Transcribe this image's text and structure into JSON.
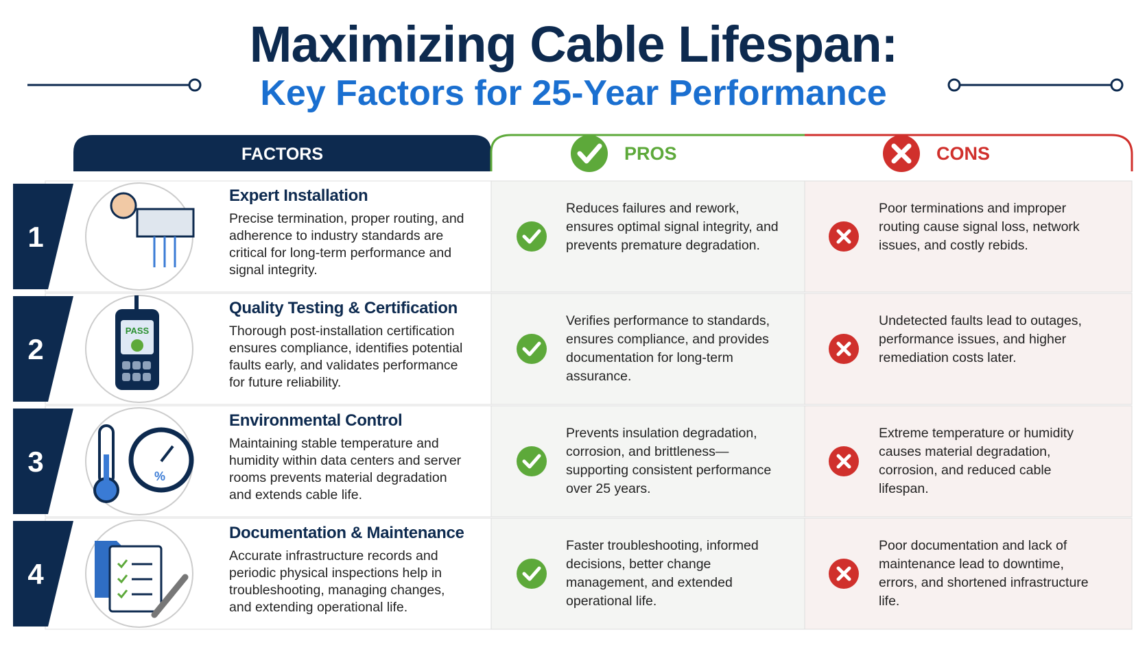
{
  "header": {
    "title": "Maximizing Cable Lifespan:",
    "subtitle": "Key Factors for 25-Year Performance"
  },
  "table": {
    "columns": [
      "FACTORS",
      "PROS",
      "CONS"
    ],
    "rows": [
      {
        "number": "1",
        "title": "Expert Installation",
        "description": "Precise termination, proper routing, and adherence to industry standards are critical for long-term performance and signal integrity.",
        "pros": "Reduces failures and rework, ensures optimal signal integrity, and prevents premature degradation.",
        "cons": "Poor terminations and improper routing cause signal loss, network issues, and costly rebids."
      },
      {
        "number": "2",
        "title": "Quality Testing & Certification",
        "description": "Thorough post-installation certification ensures compliance, identifies potential faults early, and validates performance for future reliability.",
        "pros": "Verifies performance to standards, ensures compliance, and provides documentation for long-term assurance.",
        "cons": "Undetected faults lead to outages, performance issues, and higher remediation costs later.",
        "icon_text": "PASS"
      },
      {
        "number": "3",
        "title": "Environmental Control",
        "description": "Maintaining stable temperature and humidity within data centers and server rooms prevents material degradation and extends cable life.",
        "pros": "Prevents insulation degradation, corrosion, and brittleness—supporting consistent performance over 25 years.",
        "cons": "Extreme temperature or humidity causes material degradation, corrosion, and reduced cable lifespan.",
        "icon_text": "%"
      },
      {
        "number": "4",
        "title": "Documentation & Maintenance",
        "description": "Accurate infrastructure records and periodic physical inspections help in troubleshooting, managing changes, and extending operational life.",
        "pros": "Faster troubleshooting, informed decisions, better change management, and extended operational life.",
        "cons": "Poor documentation and lack of maintenance lead to downtime, errors, and shortened infrastructure life."
      }
    ]
  }
}
